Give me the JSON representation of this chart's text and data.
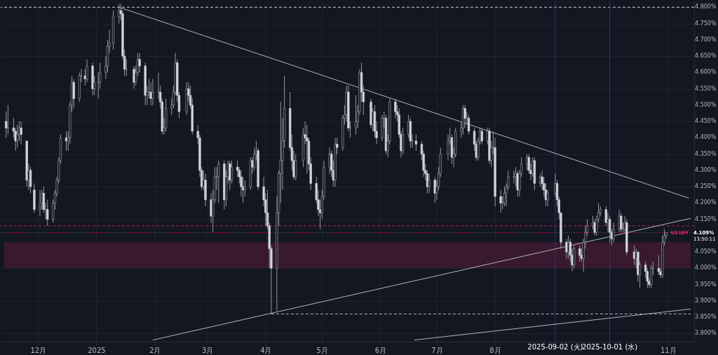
{
  "chart_data": {
    "type": "candlestick",
    "x": [
      "2024-11-14",
      "2024-11-15",
      "2024-11-18",
      "2024-11-19",
      "2024-11-20",
      "2024-11-21",
      "2024-11-22",
      "2024-11-25",
      "2024-11-26",
      "2024-11-27",
      "2024-11-29",
      "2024-12-02",
      "2024-12-03",
      "2024-12-04",
      "2024-12-05",
      "2024-12-06",
      "2024-12-09",
      "2024-12-10",
      "2024-12-11",
      "2024-12-12",
      "2024-12-13",
      "2024-12-16",
      "2024-12-17",
      "2024-12-18",
      "2024-12-19",
      "2024-12-20",
      "2024-12-23",
      "2024-12-24",
      "2024-12-26",
      "2024-12-27",
      "2024-12-30",
      "2024-12-31",
      "2025-01-02",
      "2025-01-03",
      "2025-01-06",
      "2025-01-07",
      "2025-01-08",
      "2025-01-10",
      "2025-01-13",
      "2025-01-14",
      "2025-01-15",
      "2025-01-16",
      "2025-01-17",
      "2025-01-21",
      "2025-01-22",
      "2025-01-23",
      "2025-01-24",
      "2025-01-27",
      "2025-01-28",
      "2025-01-29",
      "2025-01-30",
      "2025-01-31",
      "2025-02-03",
      "2025-02-04",
      "2025-02-05",
      "2025-02-06",
      "2025-02-07",
      "2025-02-10",
      "2025-02-11",
      "2025-02-12",
      "2025-02-13",
      "2025-02-14",
      "2025-02-18",
      "2025-02-19",
      "2025-02-20",
      "2025-02-21",
      "2025-02-24",
      "2025-02-25",
      "2025-02-26",
      "2025-02-27",
      "2025-02-28",
      "2025-03-03",
      "2025-03-04",
      "2025-03-05",
      "2025-03-06",
      "2025-03-07",
      "2025-03-10",
      "2025-03-11",
      "2025-03-12",
      "2025-03-13",
      "2025-03-14",
      "2025-03-17",
      "2025-03-18",
      "2025-03-19",
      "2025-03-20",
      "2025-03-21",
      "2025-03-24",
      "2025-03-25",
      "2025-03-26",
      "2025-03-27",
      "2025-03-28",
      "2025-03-31",
      "2025-04-01",
      "2025-04-02",
      "2025-04-03",
      "2025-04-04",
      "2025-04-07",
      "2025-04-08",
      "2025-04-09",
      "2025-04-10",
      "2025-04-11",
      "2025-04-14",
      "2025-04-15",
      "2025-04-16",
      "2025-04-17",
      "2025-04-21",
      "2025-04-22",
      "2025-04-23",
      "2025-04-24",
      "2025-04-25",
      "2025-04-28",
      "2025-04-29",
      "2025-04-30",
      "2025-05-01",
      "2025-05-02",
      "2025-05-05",
      "2025-05-06",
      "2025-05-07",
      "2025-05-08",
      "2025-05-09",
      "2025-05-12",
      "2025-05-13",
      "2025-05-14",
      "2025-05-15",
      "2025-05-16",
      "2025-05-19",
      "2025-05-20",
      "2025-05-21",
      "2025-05-22",
      "2025-05-23",
      "2025-05-27",
      "2025-05-28",
      "2025-05-29",
      "2025-05-30",
      "2025-06-02",
      "2025-06-03",
      "2025-06-04",
      "2025-06-05",
      "2025-06-06",
      "2025-06-09",
      "2025-06-10",
      "2025-06-11",
      "2025-06-12",
      "2025-06-13",
      "2025-06-16",
      "2025-06-17",
      "2025-06-18",
      "2025-06-20",
      "2025-06-23",
      "2025-06-24",
      "2025-06-25",
      "2025-06-26",
      "2025-06-27",
      "2025-06-30",
      "2025-07-01",
      "2025-07-02",
      "2025-07-03",
      "2025-07-07",
      "2025-07-08",
      "2025-07-09",
      "2025-07-10",
      "2025-07-11",
      "2025-07-14",
      "2025-07-15",
      "2025-07-16",
      "2025-07-17",
      "2025-07-18",
      "2025-07-21",
      "2025-07-22",
      "2025-07-23",
      "2025-07-24",
      "2025-07-25",
      "2025-07-28",
      "2025-07-29",
      "2025-07-30",
      "2025-07-31",
      "2025-08-01",
      "2025-08-04",
      "2025-08-05",
      "2025-08-06",
      "2025-08-07",
      "2025-08-08",
      "2025-08-11",
      "2025-08-12",
      "2025-08-13",
      "2025-08-14",
      "2025-08-15",
      "2025-08-18",
      "2025-08-19",
      "2025-08-20",
      "2025-08-21",
      "2025-08-22",
      "2025-08-25",
      "2025-08-26",
      "2025-08-27",
      "2025-08-28",
      "2025-08-29",
      "2025-09-02",
      "2025-09-03",
      "2025-09-04",
      "2025-09-05",
      "2025-09-08",
      "2025-09-09",
      "2025-09-10",
      "2025-09-11",
      "2025-09-12",
      "2025-09-15",
      "2025-09-16",
      "2025-09-17",
      "2025-09-18",
      "2025-09-19",
      "2025-09-22",
      "2025-09-23",
      "2025-09-24",
      "2025-09-25",
      "2025-09-26",
      "2025-09-29",
      "2025-09-30",
      "2025-10-01",
      "2025-10-02",
      "2025-10-03",
      "2025-10-06",
      "2025-10-07",
      "2025-10-08",
      "2025-10-09",
      "2025-10-10",
      "2025-10-14",
      "2025-10-15",
      "2025-10-16",
      "2025-10-17",
      "2025-10-20",
      "2025-10-21",
      "2025-10-22",
      "2025-10-23",
      "2025-10-24",
      "2025-10-27",
      "2025-10-28",
      "2025-10-29",
      "2025-10-30",
      "2025-10-31"
    ],
    "ohlc": [
      [
        4.45,
        4.48,
        4.4,
        4.43
      ],
      [
        4.43,
        4.5,
        4.41,
        4.43
      ],
      [
        4.43,
        4.46,
        4.4,
        4.42
      ],
      [
        4.42,
        4.43,
        4.36,
        4.39
      ],
      [
        4.39,
        4.44,
        4.37,
        4.41
      ],
      [
        4.41,
        4.45,
        4.39,
        4.43
      ],
      [
        4.43,
        4.45,
        4.38,
        4.41
      ],
      [
        4.39,
        4.39,
        4.25,
        4.27
      ],
      [
        4.27,
        4.32,
        4.24,
        4.3
      ],
      [
        4.3,
        4.31,
        4.23,
        4.25
      ],
      [
        4.24,
        4.26,
        4.17,
        4.18
      ],
      [
        4.18,
        4.24,
        4.16,
        4.19
      ],
      [
        4.2,
        4.24,
        4.18,
        4.23
      ],
      [
        4.23,
        4.25,
        4.17,
        4.18
      ],
      [
        4.18,
        4.2,
        4.15,
        4.18
      ],
      [
        4.18,
        4.21,
        4.13,
        4.15
      ],
      [
        4.15,
        4.21,
        4.14,
        4.2
      ],
      [
        4.2,
        4.24,
        4.18,
        4.23
      ],
      [
        4.23,
        4.28,
        4.22,
        4.27
      ],
      [
        4.27,
        4.34,
        4.26,
        4.33
      ],
      [
        4.33,
        4.41,
        4.32,
        4.4
      ],
      [
        4.4,
        4.42,
        4.36,
        4.39
      ],
      [
        4.39,
        4.42,
        4.36,
        4.4
      ],
      [
        4.4,
        4.51,
        4.38,
        4.5
      ],
      [
        4.5,
        4.59,
        4.48,
        4.57
      ],
      [
        4.57,
        4.58,
        4.49,
        4.52
      ],
      [
        4.52,
        4.6,
        4.51,
        4.59
      ],
      [
        4.59,
        4.61,
        4.57,
        4.59
      ],
      [
        4.59,
        4.61,
        4.56,
        4.58
      ],
      [
        4.58,
        4.64,
        4.57,
        4.62
      ],
      [
        4.62,
        4.63,
        4.53,
        4.55
      ],
      [
        4.55,
        4.59,
        4.53,
        4.57
      ],
      [
        4.57,
        4.6,
        4.52,
        4.57
      ],
      [
        4.57,
        4.63,
        4.55,
        4.6
      ],
      [
        4.6,
        4.65,
        4.58,
        4.62
      ],
      [
        4.62,
        4.7,
        4.6,
        4.68
      ],
      [
        4.68,
        4.73,
        4.66,
        4.69
      ],
      [
        4.69,
        4.79,
        4.67,
        4.77
      ],
      [
        4.77,
        4.81,
        4.75,
        4.79
      ],
      [
        4.79,
        4.81,
        4.76,
        4.78
      ],
      [
        4.78,
        4.79,
        4.64,
        4.65
      ],
      [
        4.65,
        4.67,
        4.59,
        4.61
      ],
      [
        4.61,
        4.64,
        4.59,
        4.61
      ],
      [
        4.61,
        4.62,
        4.55,
        4.57
      ],
      [
        4.57,
        4.62,
        4.56,
        4.6
      ],
      [
        4.6,
        4.66,
        4.59,
        4.64
      ],
      [
        4.64,
        4.66,
        4.6,
        4.62
      ],
      [
        4.62,
        4.63,
        4.5,
        4.53
      ],
      [
        4.53,
        4.56,
        4.5,
        4.54
      ],
      [
        4.54,
        4.58,
        4.52,
        4.54
      ],
      [
        4.54,
        4.57,
        4.5,
        4.52
      ],
      [
        4.52,
        4.58,
        4.5,
        4.54
      ],
      [
        4.54,
        4.6,
        4.52,
        4.54
      ],
      [
        4.54,
        4.56,
        4.49,
        4.51
      ],
      [
        4.51,
        4.52,
        4.41,
        4.42
      ],
      [
        4.42,
        4.46,
        4.41,
        4.43
      ],
      [
        4.43,
        4.52,
        4.42,
        4.49
      ],
      [
        4.49,
        4.52,
        4.47,
        4.5
      ],
      [
        4.5,
        4.56,
        4.49,
        4.54
      ],
      [
        4.54,
        4.66,
        4.53,
        4.63
      ],
      [
        4.63,
        4.64,
        4.51,
        4.53
      ],
      [
        4.53,
        4.54,
        4.46,
        4.48
      ],
      [
        4.48,
        4.57,
        4.47,
        4.55
      ],
      [
        4.55,
        4.57,
        4.51,
        4.53
      ],
      [
        4.53,
        4.56,
        4.49,
        4.5
      ],
      [
        4.5,
        4.52,
        4.41,
        4.42
      ],
      [
        4.42,
        4.44,
        4.38,
        4.4
      ],
      [
        4.4,
        4.41,
        4.28,
        4.3
      ],
      [
        4.3,
        4.31,
        4.24,
        4.25
      ],
      [
        4.25,
        4.3,
        4.24,
        4.27
      ],
      [
        4.27,
        4.29,
        4.19,
        4.21
      ],
      [
        4.21,
        4.23,
        4.14,
        4.16
      ],
      [
        4.16,
        4.24,
        4.11,
        4.21
      ],
      [
        4.21,
        4.31,
        4.2,
        4.28
      ],
      [
        4.28,
        4.31,
        4.24,
        4.28
      ],
      [
        4.28,
        4.33,
        4.2,
        4.32
      ],
      [
        4.32,
        4.33,
        4.18,
        4.21
      ],
      [
        4.21,
        4.3,
        4.19,
        4.28
      ],
      [
        4.28,
        4.33,
        4.26,
        4.32
      ],
      [
        4.32,
        4.33,
        4.24,
        4.27
      ],
      [
        4.27,
        4.33,
        4.26,
        4.31
      ],
      [
        4.31,
        4.33,
        4.28,
        4.3
      ],
      [
        4.3,
        4.31,
        4.26,
        4.28
      ],
      [
        4.28,
        4.3,
        4.22,
        4.25
      ],
      [
        4.25,
        4.28,
        4.2,
        4.24
      ],
      [
        4.24,
        4.27,
        4.22,
        4.25
      ],
      [
        4.25,
        4.34,
        4.24,
        4.33
      ],
      [
        4.33,
        4.34,
        4.29,
        4.31
      ],
      [
        4.31,
        4.37,
        4.3,
        4.35
      ],
      [
        4.35,
        4.39,
        4.33,
        4.36
      ],
      [
        4.36,
        4.37,
        4.24,
        4.25
      ],
      [
        4.25,
        4.28,
        4.19,
        4.21
      ],
      [
        4.21,
        4.23,
        4.13,
        4.17
      ],
      [
        4.17,
        4.24,
        4.12,
        4.13
      ],
      [
        4.13,
        4.14,
        4.0,
        4.06
      ],
      [
        4.06,
        4.07,
        3.86,
        4.0
      ],
      [
        4.0,
        4.22,
        3.87,
        4.17
      ],
      [
        4.17,
        4.3,
        4.13,
        4.29
      ],
      [
        4.29,
        4.51,
        4.2,
        4.33
      ],
      [
        4.33,
        4.46,
        4.24,
        4.39
      ],
      [
        4.39,
        4.59,
        4.37,
        4.49
      ],
      [
        4.49,
        4.54,
        4.36,
        4.37
      ],
      [
        4.37,
        4.41,
        4.3,
        4.33
      ],
      [
        4.33,
        4.36,
        4.27,
        4.28
      ],
      [
        4.28,
        4.35,
        4.27,
        4.33
      ],
      [
        4.33,
        4.43,
        4.31,
        4.41
      ],
      [
        4.41,
        4.45,
        4.38,
        4.4
      ],
      [
        4.4,
        4.44,
        4.29,
        4.39
      ],
      [
        4.39,
        4.4,
        4.3,
        4.32
      ],
      [
        4.32,
        4.34,
        4.24,
        4.26
      ],
      [
        4.26,
        4.28,
        4.2,
        4.21
      ],
      [
        4.21,
        4.24,
        4.16,
        4.18
      ],
      [
        4.18,
        4.21,
        4.12,
        4.17
      ],
      [
        4.17,
        4.24,
        4.15,
        4.22
      ],
      [
        4.22,
        4.33,
        4.21,
        4.31
      ],
      [
        4.31,
        4.37,
        4.29,
        4.35
      ],
      [
        4.35,
        4.36,
        4.28,
        4.3
      ],
      [
        4.3,
        4.33,
        4.25,
        4.27
      ],
      [
        4.27,
        4.4,
        4.25,
        4.38
      ],
      [
        4.38,
        4.4,
        4.35,
        4.37
      ],
      [
        4.37,
        4.47,
        4.36,
        4.46
      ],
      [
        4.46,
        4.5,
        4.44,
        4.47
      ],
      [
        4.47,
        4.56,
        4.45,
        4.54
      ],
      [
        4.54,
        4.56,
        4.42,
        4.43
      ],
      [
        4.43,
        4.45,
        4.4,
        4.43
      ],
      [
        4.43,
        4.53,
        4.41,
        4.45
      ],
      [
        4.45,
        4.5,
        4.43,
        4.48
      ],
      [
        4.48,
        4.61,
        4.47,
        4.6
      ],
      [
        4.6,
        4.63,
        4.51,
        4.54
      ],
      [
        4.54,
        4.56,
        4.47,
        4.51
      ],
      [
        4.51,
        4.52,
        4.43,
        4.44
      ],
      [
        4.44,
        4.49,
        4.42,
        4.48
      ],
      [
        4.48,
        4.5,
        4.4,
        4.42
      ],
      [
        4.42,
        4.45,
        4.38,
        4.4
      ],
      [
        4.4,
        4.47,
        4.39,
        4.46
      ],
      [
        4.46,
        4.48,
        4.43,
        4.46
      ],
      [
        4.46,
        4.47,
        4.35,
        4.36
      ],
      [
        4.36,
        4.41,
        4.34,
        4.39
      ],
      [
        4.39,
        4.52,
        4.38,
        4.51
      ],
      [
        4.51,
        4.52,
        4.46,
        4.48
      ],
      [
        4.48,
        4.5,
        4.45,
        4.47
      ],
      [
        4.47,
        4.49,
        4.4,
        4.41
      ],
      [
        4.41,
        4.42,
        4.34,
        4.36
      ],
      [
        4.36,
        4.43,
        4.35,
        4.41
      ],
      [
        4.41,
        4.47,
        4.4,
        4.45
      ],
      [
        4.45,
        4.46,
        4.37,
        4.39
      ],
      [
        4.39,
        4.41,
        4.37,
        4.39
      ],
      [
        4.39,
        4.41,
        4.36,
        4.38
      ],
      [
        4.38,
        4.39,
        4.33,
        4.35
      ],
      [
        4.35,
        4.36,
        4.28,
        4.3
      ],
      [
        4.3,
        4.32,
        4.27,
        4.29
      ],
      [
        4.29,
        4.3,
        4.23,
        4.25
      ],
      [
        4.25,
        4.29,
        4.23,
        4.27
      ],
      [
        4.27,
        4.28,
        4.2,
        4.23
      ],
      [
        4.23,
        4.27,
        4.21,
        4.25
      ],
      [
        4.25,
        4.31,
        4.24,
        4.29
      ],
      [
        4.29,
        4.37,
        4.28,
        4.35
      ],
      [
        4.35,
        4.41,
        4.33,
        4.39
      ],
      [
        4.39,
        4.43,
        4.38,
        4.4
      ],
      [
        4.4,
        4.41,
        4.32,
        4.34
      ],
      [
        4.34,
        4.37,
        4.31,
        4.35
      ],
      [
        4.35,
        4.43,
        4.34,
        4.42
      ],
      [
        4.42,
        4.45,
        4.4,
        4.43
      ],
      [
        4.43,
        4.5,
        4.41,
        4.49
      ],
      [
        4.49,
        4.5,
        4.43,
        4.46
      ],
      [
        4.46,
        4.48,
        4.44,
        4.46
      ],
      [
        4.46,
        4.47,
        4.41,
        4.42
      ],
      [
        4.42,
        4.43,
        4.36,
        4.38
      ],
      [
        4.38,
        4.39,
        4.33,
        4.34
      ],
      [
        4.34,
        4.4,
        4.33,
        4.39
      ],
      [
        4.39,
        4.43,
        4.38,
        4.42
      ],
      [
        4.42,
        4.43,
        4.38,
        4.39
      ],
      [
        4.39,
        4.43,
        4.38,
        4.42
      ],
      [
        4.42,
        4.43,
        4.32,
        4.33
      ],
      [
        4.33,
        4.39,
        4.31,
        4.37
      ],
      [
        4.37,
        4.42,
        4.35,
        4.37
      ],
      [
        4.37,
        4.4,
        4.19,
        4.22
      ],
      [
        4.22,
        4.24,
        4.17,
        4.2
      ],
      [
        4.2,
        4.22,
        4.18,
        4.2
      ],
      [
        4.2,
        4.25,
        4.19,
        4.23
      ],
      [
        4.23,
        4.26,
        4.19,
        4.25
      ],
      [
        4.25,
        4.3,
        4.24,
        4.28
      ],
      [
        4.28,
        4.3,
        4.26,
        4.28
      ],
      [
        4.28,
        4.31,
        4.25,
        4.29
      ],
      [
        4.29,
        4.3,
        4.22,
        4.24
      ],
      [
        4.24,
        4.3,
        4.22,
        4.29
      ],
      [
        4.29,
        4.34,
        4.28,
        4.32
      ],
      [
        4.32,
        4.35,
        4.3,
        4.34
      ],
      [
        4.34,
        4.35,
        4.29,
        4.3
      ],
      [
        4.3,
        4.32,
        4.27,
        4.29
      ],
      [
        4.29,
        4.34,
        4.28,
        4.33
      ],
      [
        4.33,
        4.34,
        4.24,
        4.26
      ],
      [
        4.26,
        4.29,
        4.25,
        4.28
      ],
      [
        4.28,
        4.3,
        4.24,
        4.26
      ],
      [
        4.26,
        4.28,
        4.22,
        4.24
      ],
      [
        4.24,
        4.26,
        4.19,
        4.21
      ],
      [
        4.21,
        4.24,
        4.19,
        4.23
      ],
      [
        4.23,
        4.29,
        4.22,
        4.26
      ],
      [
        4.26,
        4.27,
        4.19,
        4.21
      ],
      [
        4.21,
        4.22,
        4.15,
        4.17
      ],
      [
        4.17,
        4.17,
        4.06,
        4.08
      ],
      [
        4.08,
        4.09,
        4.03,
        4.05
      ],
      [
        4.05,
        4.1,
        4.03,
        4.08
      ],
      [
        4.08,
        4.09,
        4.02,
        4.04
      ],
      [
        4.04,
        4.06,
        3.99,
        4.01
      ],
      [
        4.01,
        4.07,
        4.0,
        4.06
      ],
      [
        4.06,
        4.07,
        4.02,
        4.04
      ],
      [
        4.04,
        4.06,
        4.02,
        4.03
      ],
      [
        4.03,
        4.09,
        3.99,
        4.08
      ],
      [
        4.08,
        4.13,
        4.06,
        4.11
      ],
      [
        4.11,
        4.15,
        4.1,
        4.13
      ],
      [
        4.13,
        4.16,
        4.12,
        4.14
      ],
      [
        4.14,
        4.15,
        4.1,
        4.11
      ],
      [
        4.11,
        4.16,
        4.1,
        4.15
      ],
      [
        4.15,
        4.2,
        4.14,
        4.17
      ],
      [
        4.17,
        4.19,
        4.16,
        4.18
      ],
      [
        4.18,
        4.19,
        4.13,
        4.14
      ],
      [
        4.14,
        4.17,
        4.11,
        4.15
      ],
      [
        4.15,
        4.16,
        4.08,
        4.11
      ],
      [
        4.11,
        4.12,
        4.07,
        4.09
      ],
      [
        4.09,
        4.14,
        4.08,
        4.12
      ],
      [
        4.12,
        4.18,
        4.11,
        4.16
      ],
      [
        4.16,
        4.17,
        4.11,
        4.12
      ],
      [
        4.12,
        4.14,
        4.11,
        4.12
      ],
      [
        4.12,
        4.16,
        4.11,
        4.14
      ],
      [
        4.14,
        4.15,
        4.04,
        4.05
      ],
      [
        4.05,
        4.07,
        4.01,
        4.03
      ],
      [
        4.03,
        4.06,
        4.0,
        4.05
      ],
      [
        4.05,
        4.05,
        3.96,
        3.98
      ],
      [
        3.98,
        4.02,
        3.94,
        4.01
      ],
      [
        4.01,
        4.02,
        3.97,
        3.99
      ],
      [
        3.99,
        4.0,
        3.94,
        3.96
      ],
      [
        3.96,
        3.97,
        3.94,
        3.95
      ],
      [
        3.95,
        4.01,
        3.94,
        4.0
      ],
      [
        4.0,
        4.02,
        3.98,
        4.0
      ],
      [
        4.0,
        4.04,
        3.98,
        3.99
      ],
      [
        3.99,
        4.0,
        3.97,
        3.98
      ],
      [
        3.98,
        4.1,
        3.97,
        4.08
      ],
      [
        4.08,
        4.12,
        4.07,
        4.1
      ],
      [
        4.1,
        4.11,
        4.09,
        4.11
      ]
    ],
    "series": [
      {
        "type": "line",
        "x": [
          "2025-01-13",
          "2025-11-12"
        ],
        "values": [
          4.8,
          4.215
        ],
        "color": "#b2b5be",
        "line_style": "solid"
      },
      {
        "type": "line",
        "x": [
          "2025-01-31",
          "2025-11-13"
        ],
        "values": [
          3.78,
          4.153
        ],
        "color": "#b2b5be",
        "line_style": "solid"
      },
      {
        "type": "line",
        "x": [
          "2025-06-19",
          "2025-11-13"
        ],
        "values": [
          3.78,
          3.875
        ],
        "color": "#b2b5be",
        "line_style": "solid"
      },
      {
        "type": "line",
        "x": [
          "2025-04-04",
          "2025-11-13"
        ],
        "values": [
          3.86,
          3.86
        ],
        "color": "#b2b5be",
        "line_style": "dashed"
      }
    ],
    "ref_lines": [
      {
        "axis": "y",
        "value": 4.8,
        "color": "#d1d4dc",
        "line_style": "dashed"
      },
      {
        "axis": "y",
        "value": 4.13,
        "color": "#c2185b",
        "line_style": "dashed"
      },
      {
        "axis": "y",
        "value": 4.109,
        "label": "4.109%",
        "color": "#e91e63",
        "line_style": "dotted"
      },
      {
        "axis": "x",
        "value": "2025-09-02",
        "label": "2025-09-02 (火)",
        "color": "#1e3a8a",
        "line_style": "solid"
      },
      {
        "axis": "x",
        "value": "2025-10-01",
        "label": "2025-10-01 (水)",
        "color": "#1e3a8a",
        "line_style": "solid"
      }
    ],
    "bands": [
      {
        "axis": "y",
        "from": 4.0,
        "to": 4.08,
        "color": "#3d1a30"
      }
    ],
    "annotations": [
      "US10Y",
      "13:50:11"
    ],
    "xlim": [
      "2024-11-13",
      "2025-11-13"
    ],
    "xticks": [
      {
        "value": "2024-12-01",
        "label": "12月"
      },
      {
        "value": "2025-01-01",
        "label": "2025"
      },
      {
        "value": "2025-02-01",
        "label": "2月"
      },
      {
        "value": "2025-03-01",
        "label": "3月"
      },
      {
        "value": "2025-04-01",
        "label": "4月"
      },
      {
        "value": "2025-05-01",
        "label": "5月"
      },
      {
        "value": "2025-06-01",
        "label": "6月"
      },
      {
        "value": "2025-07-01",
        "label": "7月"
      },
      {
        "value": "2025-08-01",
        "label": "8月"
      },
      {
        "value": "2025-11-01",
        "label": "11月"
      }
    ],
    "ylim": [
      3.775,
      4.82
    ],
    "yticks": [
      {
        "value": 3.8,
        "label": "3.800%"
      },
      {
        "value": 3.85,
        "label": "3.850%"
      },
      {
        "value": 3.9,
        "label": "3.900%"
      },
      {
        "value": 3.95,
        "label": "3.950%"
      },
      {
        "value": 4.0,
        "label": "4.000%"
      },
      {
        "value": 4.05,
        "label": "4.050%"
      },
      {
        "value": 4.15,
        "label": "4.150%"
      },
      {
        "value": 4.2,
        "label": "4.200%"
      },
      {
        "value": 4.25,
        "label": "4.250%"
      },
      {
        "value": 4.3,
        "label": "4.300%"
      },
      {
        "value": 4.35,
        "label": "4.350%"
      },
      {
        "value": 4.4,
        "label": "4.400%"
      },
      {
        "value": 4.45,
        "label": "4.450%"
      },
      {
        "value": 4.5,
        "label": "4.500%"
      },
      {
        "value": 4.55,
        "label": "4.550%"
      },
      {
        "value": 4.6,
        "label": "4.600%"
      },
      {
        "value": 4.65,
        "label": "4.650%"
      },
      {
        "value": 4.7,
        "label": "4.700%"
      },
      {
        "value": 4.75,
        "label": "4.750%"
      },
      {
        "value": 4.8,
        "label": "4.800%"
      }
    ],
    "grid": true
  }
}
